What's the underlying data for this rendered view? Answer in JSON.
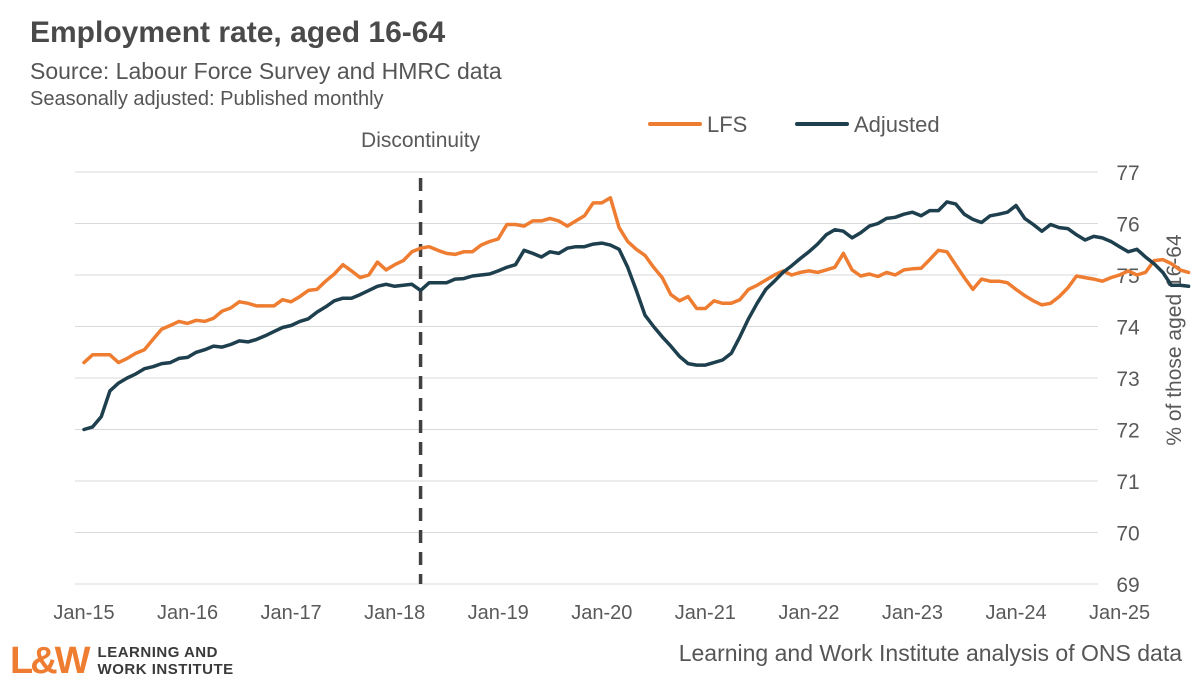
{
  "header": {
    "title": "Employment rate, aged 16-64",
    "subtitle": "Source: Labour Force Survey and HMRC data",
    "subtitle2": "Seasonally adjusted: Published monthly"
  },
  "footer": {
    "logo_mark": "L&W",
    "logo_line1": "LEARNING AND",
    "logo_line2": "WORK INSTITUTE",
    "source_note": "Learning and Work Institute analysis of ONS data"
  },
  "colors": {
    "lfs": "#ee7d31",
    "adjusted": "#1e3f4d",
    "grid": "#d9d9d9",
    "text": "#595959",
    "marker": "#404040"
  },
  "chart_data": {
    "type": "line",
    "title": "Employment rate, aged 16-64",
    "xlabel": "",
    "ylabel": "% of those aged 16-64",
    "ylim": [
      69,
      77
    ],
    "yticks": [
      69,
      70,
      71,
      72,
      73,
      74,
      75,
      76,
      77
    ],
    "y_axis_position": "right",
    "grid": "horizontal",
    "legend_position": "top-right",
    "x_start": "Jan-15",
    "x_end": "Aug-25",
    "x_tick_labels": [
      "Jan-15",
      "Jan-16",
      "Jan-17",
      "Jan-18",
      "Jan-19",
      "Jan-20",
      "Jan-21",
      "Jan-22",
      "Jan-23",
      "Jan-24",
      "Jan-25"
    ],
    "annotation": {
      "label": "Discontinuity",
      "x": "Apr-18"
    },
    "series": [
      {
        "name": "LFS",
        "values": [
          73.3,
          73.45,
          73.45,
          73.45,
          73.3,
          73.38,
          73.48,
          73.55,
          73.75,
          73.95,
          74.02,
          74.1,
          74.06,
          74.12,
          74.1,
          74.16,
          74.3,
          74.36,
          74.48,
          74.45,
          74.4,
          74.4,
          74.4,
          74.52,
          74.48,
          74.58,
          74.7,
          74.72,
          74.88,
          75.02,
          75.2,
          75.08,
          74.95,
          75.0,
          75.25,
          75.1,
          75.2,
          75.28,
          75.45,
          75.52,
          75.55,
          75.48,
          75.42,
          75.4,
          75.45,
          75.45,
          75.58,
          75.65,
          75.7,
          75.98,
          75.98,
          75.95,
          76.05,
          76.05,
          76.1,
          76.05,
          75.95,
          76.05,
          76.15,
          76.4,
          76.4,
          76.5,
          75.92,
          75.65,
          75.5,
          75.38,
          75.15,
          74.95,
          74.62,
          74.5,
          74.58,
          74.35,
          74.35,
          74.5,
          74.45,
          74.45,
          74.52,
          74.72,
          74.8,
          74.9,
          75.0,
          75.08,
          75.0,
          75.05,
          75.08,
          75.05,
          75.1,
          75.15,
          75.42,
          75.1,
          74.98,
          75.02,
          74.97,
          75.05,
          75.0,
          75.1,
          75.12,
          75.13,
          75.3,
          75.48,
          75.45,
          75.2,
          74.95,
          74.72,
          74.92,
          74.88,
          74.88,
          74.85,
          74.72,
          74.6,
          74.5,
          74.42,
          74.45,
          74.58,
          74.75,
          74.98,
          74.95,
          74.92,
          74.88,
          74.95,
          75.0,
          75.08,
          75.0,
          75.05,
          75.28,
          75.3,
          75.22,
          75.1,
          75.05
        ]
      },
      {
        "name": "Adjusted",
        "values": [
          72.0,
          72.05,
          72.25,
          72.75,
          72.9,
          73.0,
          73.08,
          73.18,
          73.22,
          73.28,
          73.3,
          73.38,
          73.4,
          73.5,
          73.55,
          73.62,
          73.6,
          73.65,
          73.72,
          73.7,
          73.75,
          73.82,
          73.9,
          73.98,
          74.02,
          74.1,
          74.15,
          74.28,
          74.38,
          74.5,
          74.55,
          74.55,
          74.62,
          74.7,
          74.78,
          74.82,
          74.78,
          74.8,
          74.82,
          74.7,
          74.85,
          74.85,
          74.85,
          74.92,
          74.93,
          74.98,
          75.0,
          75.02,
          75.08,
          75.15,
          75.2,
          75.48,
          75.42,
          75.35,
          75.45,
          75.42,
          75.52,
          75.55,
          75.55,
          75.6,
          75.62,
          75.58,
          75.5,
          75.15,
          74.7,
          74.22,
          74.0,
          73.8,
          73.62,
          73.42,
          73.28,
          73.25,
          73.25,
          73.3,
          73.35,
          73.48,
          73.8,
          74.15,
          74.45,
          74.72,
          74.88,
          75.05,
          75.18,
          75.32,
          75.45,
          75.6,
          75.78,
          75.88,
          75.85,
          75.72,
          75.82,
          75.95,
          76.0,
          76.1,
          76.12,
          76.18,
          76.22,
          76.15,
          76.25,
          76.25,
          76.42,
          76.38,
          76.18,
          76.08,
          76.02,
          76.15,
          76.18,
          76.22,
          76.35,
          76.1,
          75.98,
          75.85,
          75.98,
          75.92,
          75.9,
          75.78,
          75.68,
          75.75,
          75.72,
          75.65,
          75.55,
          75.45,
          75.5,
          75.35,
          75.22,
          75.05,
          74.8,
          74.8,
          74.78
        ]
      }
    ]
  }
}
